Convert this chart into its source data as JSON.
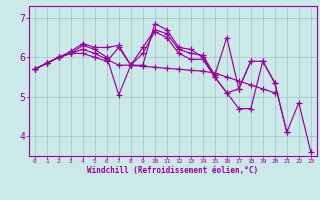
{
  "background_color": "#cce9e9",
  "grid_color": "#aacccc",
  "line_color": "#990099",
  "xlim": [
    -0.5,
    23.5
  ],
  "ylim": [
    3.5,
    7.3
  ],
  "yticks": [
    4,
    5,
    6,
    7
  ],
  "xlabel": "Windchill (Refroidissement éolien,°C)",
  "lines": [
    [
      5.7,
      5.85,
      6.0,
      6.1,
      6.3,
      6.2,
      6.0,
      5.05,
      5.8,
      5.8,
      6.85,
      6.7,
      6.25,
      6.2,
      6.0,
      5.5,
      5.1,
      4.7,
      4.7,
      5.9,
      5.35,
      4.1,
      4.85,
      3.6
    ],
    [
      5.7,
      5.85,
      6.0,
      6.15,
      6.35,
      6.25,
      6.25,
      6.3,
      5.8,
      6.25,
      6.7,
      6.6,
      6.2,
      6.1,
      6.05,
      5.55,
      6.5,
      5.2,
      5.9,
      5.9,
      5.35,
      4.1,
      null,
      null
    ],
    [
      5.7,
      5.85,
      6.0,
      6.1,
      6.1,
      6.0,
      5.9,
      6.25,
      5.8,
      6.1,
      6.65,
      6.5,
      6.1,
      5.95,
      5.95,
      5.5,
      5.1,
      5.2,
      5.9,
      null,
      null,
      null,
      null,
      null
    ],
    [
      5.7,
      5.85,
      6.0,
      6.1,
      6.2,
      6.1,
      5.95,
      5.8,
      5.8,
      5.77,
      5.75,
      5.72,
      5.7,
      5.67,
      5.65,
      5.6,
      5.5,
      5.4,
      5.3,
      5.2,
      5.1,
      null,
      null,
      null
    ]
  ]
}
